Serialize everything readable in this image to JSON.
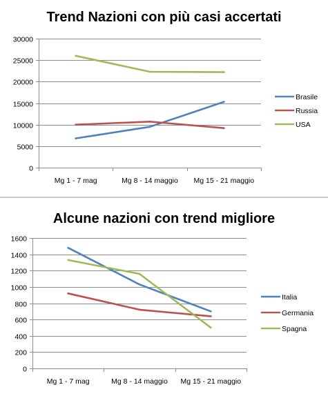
{
  "chart_data": [
    {
      "type": "line",
      "title": "Trend Nazioni con più casi accertati",
      "categories": [
        "Mg 1 - 7 mag",
        "Mg 8 - 14 maggio",
        "Mg 15 - 21 maggio"
      ],
      "series": [
        {
          "name": "Brasile",
          "color": "#4f81bd",
          "values": [
            6800,
            9500,
            15300
          ]
        },
        {
          "name": "Russia",
          "color": "#c0504d",
          "values": [
            10000,
            10700,
            9200
          ]
        },
        {
          "name": "USA",
          "color": "#9bbb59",
          "values": [
            26000,
            22300,
            22200
          ]
        }
      ],
      "ylim": [
        0,
        30000
      ],
      "yticks": [
        0,
        5000,
        10000,
        15000,
        20000,
        25000,
        30000
      ],
      "grid": true,
      "legend": "right",
      "xlabel": "",
      "ylabel": ""
    },
    {
      "type": "line",
      "title": "Alcune nazioni con trend migliore",
      "categories": [
        "Mg 1 - 7 mag",
        "Mg 8 - 14 maggio",
        "Mg 15 - 21 maggio"
      ],
      "series": [
        {
          "name": "Italia",
          "color": "#4f81bd",
          "values": [
            1480,
            1030,
            700
          ]
        },
        {
          "name": "Germania",
          "color": "#c0504d",
          "values": [
            920,
            720,
            640
          ]
        },
        {
          "name": "Spagna",
          "color": "#9bbb59",
          "values": [
            1330,
            1160,
            500
          ]
        }
      ],
      "ylim": [
        0,
        1600
      ],
      "yticks": [
        0,
        200,
        400,
        600,
        800,
        1000,
        1200,
        1400,
        1600
      ],
      "grid": true,
      "legend": "right",
      "xlabel": "",
      "ylabel": ""
    }
  ]
}
